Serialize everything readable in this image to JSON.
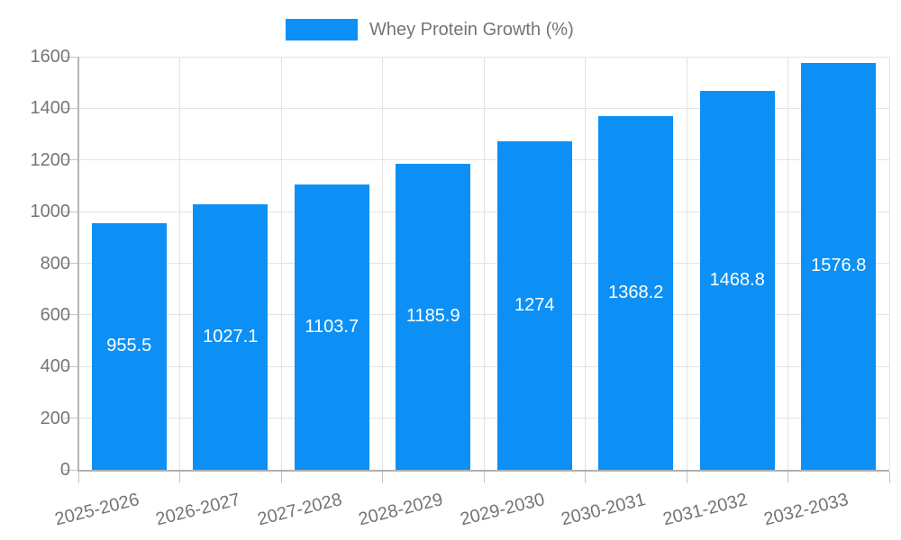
{
  "legend": {
    "label": "Whey Protein Growth (%)"
  },
  "colors": {
    "bar": "#0d90f5",
    "gridline": "#e3e3e3",
    "axis_line": "#b0b0b0",
    "tick": "#c6c6c6",
    "tick_label": "#757575",
    "legend_text": "#757575",
    "value_label": "#ffffff",
    "background": "#ffffff"
  },
  "chart_data": {
    "type": "bar",
    "title": "",
    "xlabel": "",
    "ylabel": "",
    "categories": [
      "2025-2026",
      "2026-2027",
      "2027-2028",
      "2028-2029",
      "2029-2030",
      "2030-2031",
      "2031-2032",
      "2032-2033"
    ],
    "series": [
      {
        "name": "Whey Protein Growth (%)",
        "values": [
          955.5,
          1027.1,
          1103.7,
          1185.9,
          1274,
          1368.2,
          1468.8,
          1576.8
        ]
      }
    ],
    "value_labels": [
      "955.5",
      "1027.1",
      "1103.7",
      "1185.9",
      "1274",
      "1368.2",
      "1468.8",
      "1576.8"
    ],
    "ylim": [
      0,
      1600
    ],
    "yticks": [
      0,
      200,
      400,
      600,
      800,
      1000,
      1200,
      1400,
      1600
    ],
    "grid": true,
    "legend_position": "top-center",
    "value_label_position": "inside-center",
    "x_label_rotation_deg": -14
  }
}
